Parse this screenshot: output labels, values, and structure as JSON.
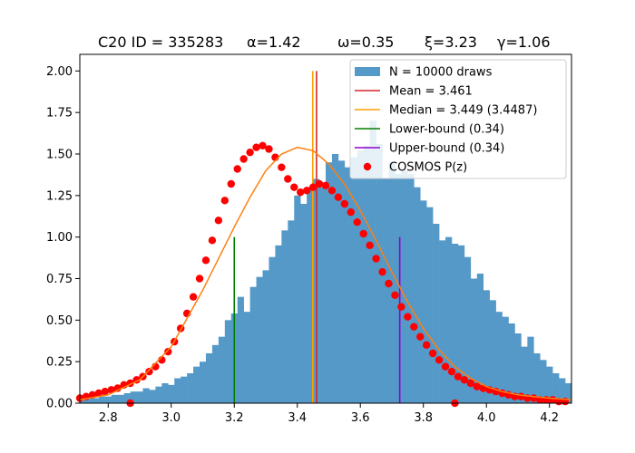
{
  "chart_data": {
    "type": "bar",
    "title_parts": [
      "C20 ID = 335283",
      "α=1.42",
      "ω=0.35",
      "ξ=3.23",
      "γ=1.06"
    ],
    "xlim": [
      2.71,
      4.27
    ],
    "ylim": [
      0,
      2.1
    ],
    "x_ticks": [
      2.8,
      3.0,
      3.2,
      3.4,
      3.6,
      3.8,
      4.0,
      4.2
    ],
    "x_tick_labels": [
      "2.8",
      "3.0",
      "3.2",
      "3.4",
      "3.6",
      "3.8",
      "4.0",
      "4.2"
    ],
    "y_ticks": [
      0,
      0.25,
      0.5,
      0.75,
      1.0,
      1.25,
      1.5,
      1.75,
      2.0
    ],
    "y_tick_labels": [
      "0.00",
      "0.25",
      "0.50",
      "0.75",
      "1.00",
      "1.25",
      "1.50",
      "1.75",
      "2.00"
    ],
    "grid": false,
    "legend_position": "top-right",
    "histogram": {
      "name": "N = 10000 draws",
      "color": "#5599c8",
      "bin_start": 2.71,
      "bin_width": 0.02,
      "values": [
        0.02,
        0.03,
        0.03,
        0.04,
        0.04,
        0.05,
        0.05,
        0.06,
        0.07,
        0.07,
        0.09,
        0.08,
        0.1,
        0.12,
        0.11,
        0.15,
        0.16,
        0.18,
        0.22,
        0.25,
        0.3,
        0.35,
        0.4,
        0.5,
        0.54,
        0.64,
        0.55,
        0.7,
        0.76,
        0.8,
        0.88,
        0.95,
        1.04,
        1.1,
        1.25,
        1.2,
        1.3,
        1.35,
        1.3,
        1.45,
        1.5,
        1.46,
        1.42,
        1.48,
        1.52,
        1.55,
        1.7,
        1.56,
        1.35,
        1.45,
        1.38,
        1.4,
        1.38,
        1.3,
        1.22,
        1.18,
        1.08,
        0.98,
        1.0,
        0.96,
        0.95,
        0.88,
        0.75,
        0.78,
        0.68,
        0.62,
        0.55,
        0.52,
        0.48,
        0.42,
        0.34,
        0.4,
        0.3,
        0.26,
        0.22,
        0.18,
        0.15,
        0.12,
        0.1,
        0.07
      ]
    },
    "skewnorm_curve": {
      "color": "#ff7f0e",
      "x": [
        2.71,
        2.8,
        2.9,
        3.0,
        3.1,
        3.2,
        3.25,
        3.3,
        3.35,
        3.4,
        3.45,
        3.5,
        3.55,
        3.6,
        3.65,
        3.7,
        3.75,
        3.8,
        3.85,
        3.9,
        3.95,
        4.0,
        4.05,
        4.1,
        4.15,
        4.2,
        4.27
      ],
      "y": [
        0.02,
        0.05,
        0.14,
        0.34,
        0.68,
        1.06,
        1.24,
        1.4,
        1.5,
        1.54,
        1.52,
        1.44,
        1.32,
        1.16,
        0.98,
        0.79,
        0.61,
        0.45,
        0.32,
        0.22,
        0.15,
        0.1,
        0.07,
        0.05,
        0.04,
        0.03,
        0.02
      ]
    },
    "vertical_lines": [
      {
        "name": "Mean = 3.461",
        "x": 3.461,
        "y_top": 2.0,
        "color": "#d62728"
      },
      {
        "name": "Median = 3.449    (3.4487)",
        "x": 3.449,
        "y_top": 2.0,
        "color": "#ff9f00"
      },
      {
        "name": "Lower-bound  (0.34)",
        "x": 3.2,
        "y_top": 1.0,
        "color": "#008000"
      },
      {
        "name": "Upper-bound  (0.34)",
        "x": 3.725,
        "y_top": 1.0,
        "color": "#9400d3"
      }
    ],
    "cosmos_pz": {
      "name": "COSMOS P(z)",
      "color": "#ff0000",
      "x": [
        2.71,
        2.73,
        2.75,
        2.77,
        2.79,
        2.81,
        2.83,
        2.85,
        2.87,
        2.89,
        2.91,
        2.93,
        2.95,
        2.97,
        2.99,
        3.01,
        3.03,
        3.05,
        3.07,
        3.09,
        3.11,
        3.13,
        3.15,
        3.17,
        3.19,
        3.21,
        3.23,
        3.25,
        3.27,
        3.29,
        3.31,
        3.33,
        3.35,
        3.37,
        3.39,
        3.41,
        3.43,
        3.45,
        3.47,
        3.49,
        3.51,
        3.53,
        3.55,
        3.57,
        3.59,
        3.61,
        3.63,
        3.65,
        3.67,
        3.69,
        3.71,
        3.73,
        3.75,
        3.77,
        3.79,
        3.81,
        3.83,
        3.85,
        3.87,
        3.89,
        3.91,
        3.93,
        3.95,
        3.97,
        3.99,
        4.01,
        4.03,
        4.05,
        4.07,
        4.09,
        4.11,
        4.13,
        4.15,
        4.17,
        4.19,
        4.21,
        4.23,
        4.25,
        2.87,
        3.9
      ],
      "y": [
        0.03,
        0.04,
        0.05,
        0.06,
        0.07,
        0.08,
        0.09,
        0.11,
        0.12,
        0.14,
        0.16,
        0.19,
        0.22,
        0.26,
        0.31,
        0.37,
        0.45,
        0.54,
        0.64,
        0.75,
        0.86,
        0.98,
        1.1,
        1.22,
        1.32,
        1.41,
        1.47,
        1.51,
        1.54,
        1.55,
        1.53,
        1.48,
        1.42,
        1.35,
        1.3,
        1.27,
        1.28,
        1.3,
        1.32,
        1.31,
        1.28,
        1.24,
        1.2,
        1.15,
        1.09,
        1.02,
        0.95,
        0.87,
        0.79,
        0.72,
        0.65,
        0.58,
        0.52,
        0.46,
        0.4,
        0.35,
        0.3,
        0.26,
        0.22,
        0.19,
        0.16,
        0.14,
        0.12,
        0.1,
        0.09,
        0.08,
        0.07,
        0.06,
        0.05,
        0.04,
        0.04,
        0.03,
        0.03,
        0.02,
        0.02,
        0.02,
        0.01,
        0.01,
        0.0,
        0.0
      ]
    },
    "legend": [
      {
        "label": "N = 10000 draws",
        "kind": "patch",
        "color": "#5599c8"
      },
      {
        "label": "Mean = 3.461",
        "kind": "line",
        "color": "#d62728"
      },
      {
        "label": "Median = 3.449    (3.4487)",
        "kind": "line",
        "color": "#ff9f00"
      },
      {
        "label": "Lower-bound  (0.34)",
        "kind": "line",
        "color": "#008000"
      },
      {
        "label": "Upper-bound  (0.34)",
        "kind": "line",
        "color": "#9400d3"
      },
      {
        "label": "COSMOS P(z)",
        "kind": "dot",
        "color": "#ff0000"
      }
    ]
  }
}
